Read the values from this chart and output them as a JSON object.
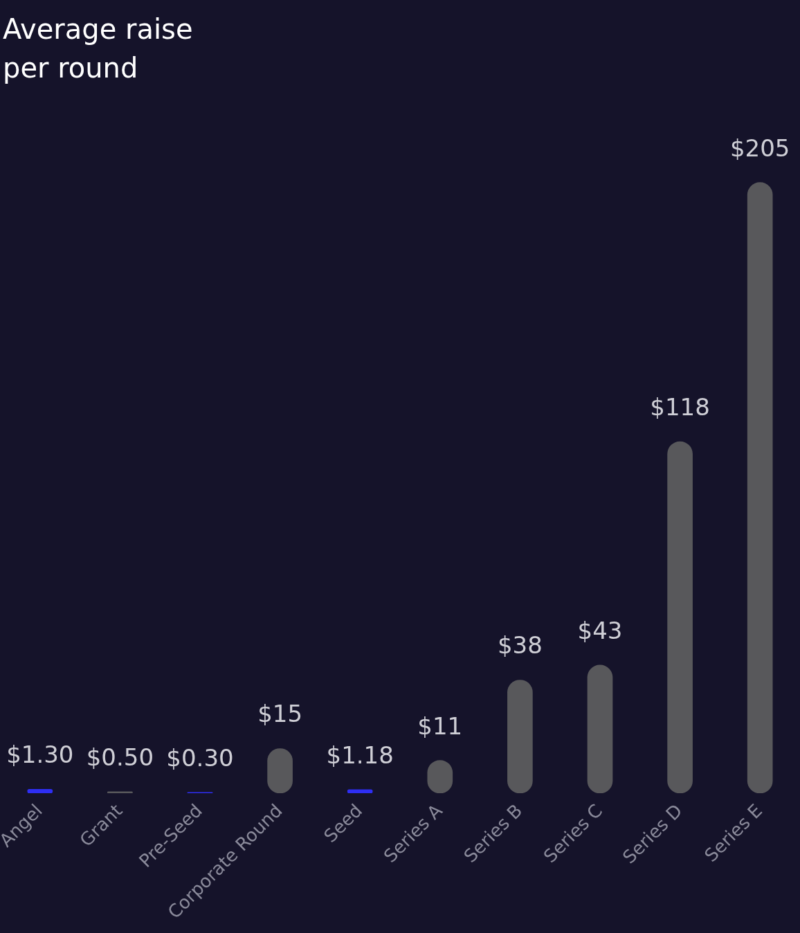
{
  "chart_data": {
    "type": "bar",
    "title": "Average raise per round",
    "categories": [
      "Angel",
      "Grant",
      "Pre-Seed",
      "Corporate Round",
      "Seed",
      "Series A",
      "Series B",
      "Series C",
      "Series D",
      "Series E"
    ],
    "values": [
      1.3,
      0.5,
      0.3,
      15,
      1.18,
      11,
      38,
      43,
      118,
      205
    ],
    "colors": [
      "#2e2ef2",
      "#58585b",
      "#2e2ef2",
      "#58585b",
      "#2e2ef2",
      "#58585b",
      "#58585b",
      "#58585b",
      "#58585b",
      "#58585b"
    ],
    "value_labels": [
      "$1.30",
      "$0.50",
      "$0.30",
      "$15",
      "$1.18",
      "$11",
      "$38",
      "$43",
      "$118",
      "$205"
    ],
    "tick_labels": "x",
    "grid": false,
    "legend": false
  }
}
